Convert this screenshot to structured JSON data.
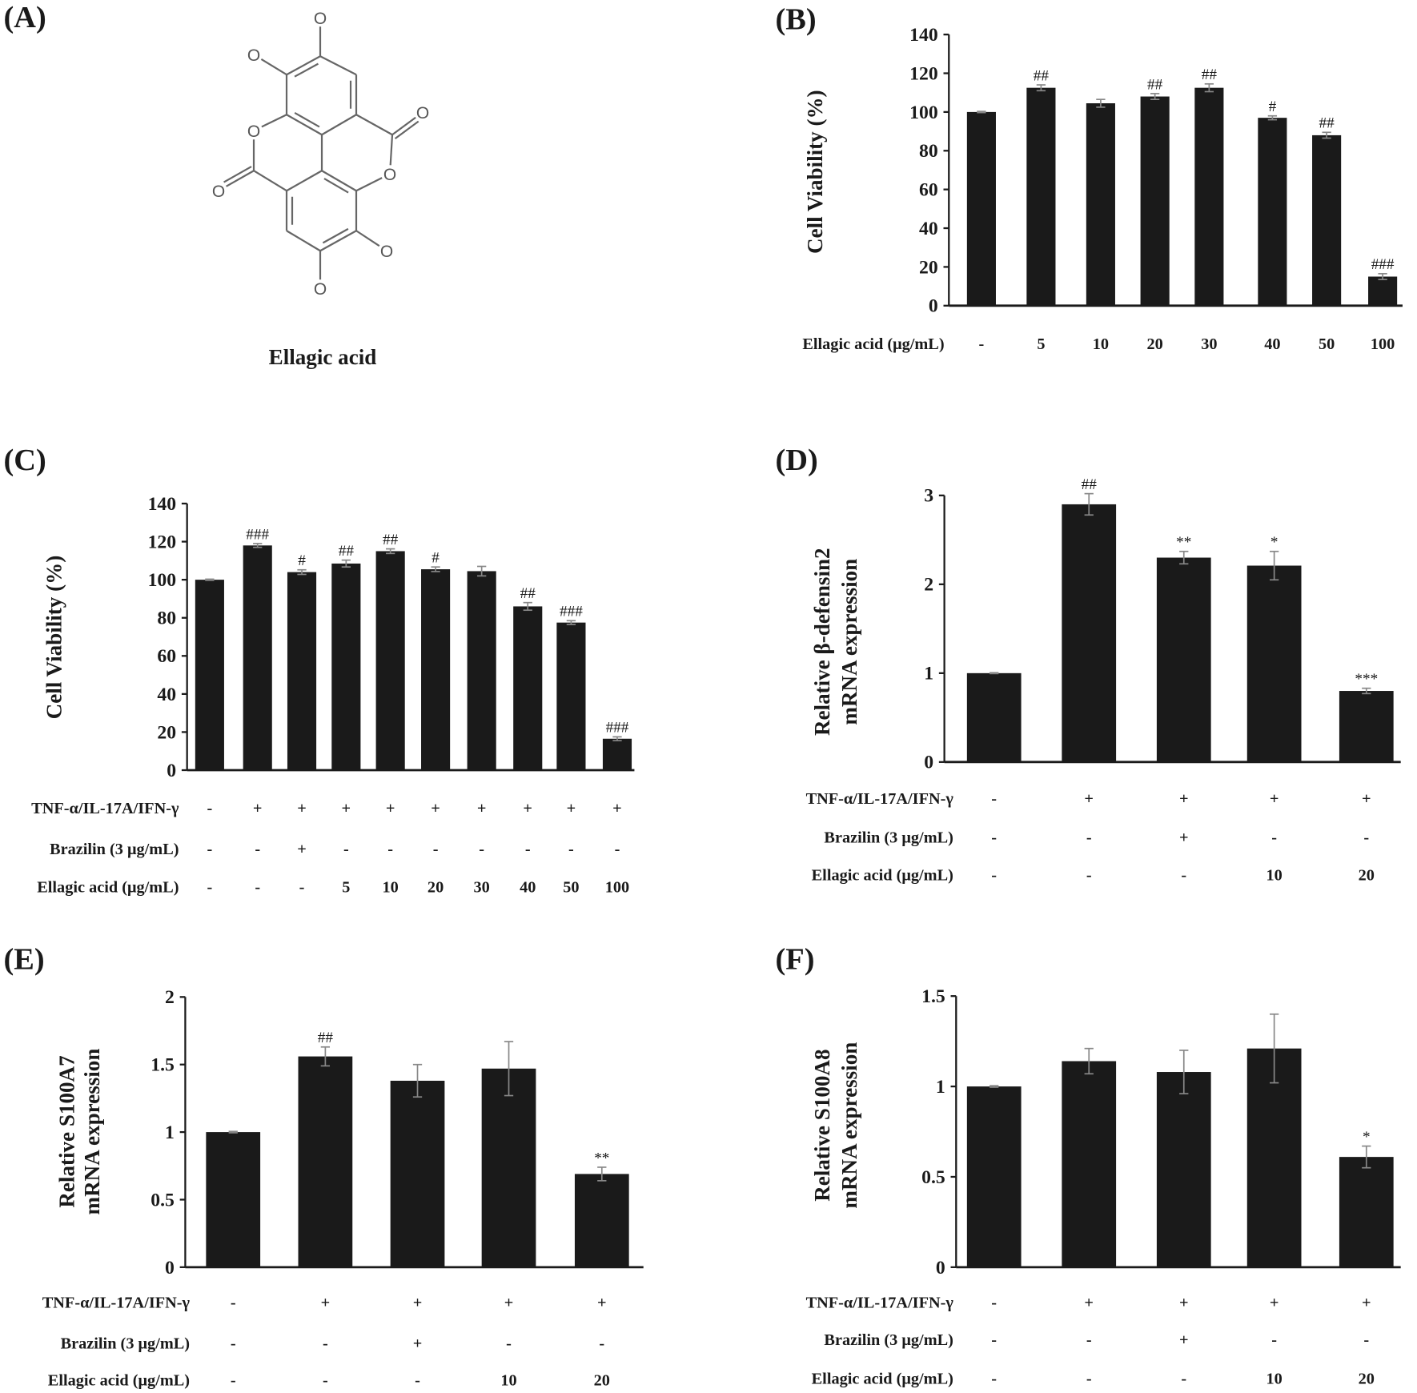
{
  "panel_a": {
    "label": "(A)",
    "compound_name": "Ellagic acid",
    "atom_label": "O"
  },
  "chart_data": [
    {
      "panel": "(B)",
      "type": "bar",
      "ylabel": "Cell Viability (%)",
      "ylim": [
        0,
        140
      ],
      "yticks": [
        "0",
        "20",
        "40",
        "60",
        "80",
        "100",
        "120",
        "140"
      ],
      "rows": [
        {
          "label": "Ellagic acid (μg/mL)",
          "values": [
            "-",
            "5",
            "10",
            "20",
            "30",
            "40",
            "50",
            "100"
          ]
        }
      ],
      "values": [
        100,
        112.5,
        104.5,
        108,
        112.5,
        97,
        88,
        15
      ],
      "errors": [
        0.3,
        1.5,
        2,
        1.5,
        2,
        1,
        1.5,
        1.5
      ],
      "significance": [
        "",
        "##",
        "",
        "##",
        "##",
        "#",
        "##",
        "###"
      ],
      "bar_color": "#1a1a1a"
    },
    {
      "panel": "(C)",
      "type": "bar",
      "ylabel": "Cell Viability (%)",
      "ylim": [
        0,
        140
      ],
      "yticks": [
        "0",
        "20",
        "40",
        "60",
        "80",
        "100",
        "120",
        "140"
      ],
      "rows": [
        {
          "label": "TNF-α/IL-17A/IFN-γ",
          "values": [
            "-",
            "+",
            "+",
            "+",
            "+",
            "+",
            "+",
            "+",
            "+",
            "+"
          ]
        },
        {
          "label": "Brazilin (3 μg/mL)",
          "values": [
            "-",
            "-",
            "+",
            "-",
            "-",
            "-",
            "-",
            "-",
            "-",
            "-"
          ]
        },
        {
          "label": "Ellagic acid (μg/mL)",
          "values": [
            "-",
            "-",
            "-",
            "5",
            "10",
            "20",
            "30",
            "40",
            "50",
            "100"
          ]
        }
      ],
      "values": [
        100,
        118,
        104,
        108.5,
        115,
        105.5,
        104.5,
        86,
        77.5,
        16.5
      ],
      "errors": [
        0.3,
        1,
        1.2,
        1.8,
        1.2,
        1.2,
        2.5,
        2,
        1,
        1
      ],
      "significance": [
        "",
        "###",
        "#",
        "##",
        "##",
        "#",
        "",
        "##",
        "###",
        "###"
      ],
      "bar_color": "#1a1a1a"
    },
    {
      "panel": "(D)",
      "type": "bar",
      "ylabel": [
        "Relative β-defensin2",
        "mRNA expression"
      ],
      "ylim": [
        0,
        3
      ],
      "yticks": [
        "0",
        "1",
        "2",
        "3"
      ],
      "rows": [
        {
          "label": "TNF-α/IL-17A/IFN-γ",
          "values": [
            "-",
            "+",
            "+",
            "+",
            "+"
          ]
        },
        {
          "label": "Brazilin (3 μg/mL)",
          "values": [
            "-",
            "-",
            "+",
            "-",
            "-"
          ]
        },
        {
          "label": "Ellagic acid (μg/mL)",
          "values": [
            "-",
            "-",
            "-",
            "10",
            "20"
          ]
        }
      ],
      "values": [
        1,
        2.9,
        2.3,
        2.21,
        0.8
      ],
      "errors": [
        0.005,
        0.12,
        0.07,
        0.16,
        0.03
      ],
      "significance": [
        "",
        "##",
        "**",
        "*",
        "***"
      ],
      "bar_color": "#1a1a1a"
    },
    {
      "panel": "(E)",
      "type": "bar",
      "ylabel": [
        "Relative S100A7",
        "mRNA expression"
      ],
      "ylim": [
        0,
        2
      ],
      "yticks": [
        "0",
        "0.5",
        "1",
        "1.5",
        "2"
      ],
      "rows": [
        {
          "label": "TNF-α/IL-17A/IFN-γ",
          "values": [
            "-",
            "+",
            "+",
            "+",
            "+"
          ]
        },
        {
          "label": "Brazilin (3 μg/mL)",
          "values": [
            "-",
            "-",
            "+",
            "-",
            "-"
          ]
        },
        {
          "label": "Ellagic acid (μg/mL)",
          "values": [
            "-",
            "-",
            "-",
            "10",
            "20"
          ]
        }
      ],
      "values": [
        1,
        1.56,
        1.38,
        1.47,
        0.69
      ],
      "errors": [
        0.005,
        0.07,
        0.12,
        0.2,
        0.05
      ],
      "significance": [
        "",
        "##",
        "",
        "",
        "**"
      ],
      "bar_color": "#1a1a1a"
    },
    {
      "panel": "(F)",
      "type": "bar",
      "ylabel": [
        "Relative S100A8",
        "mRNA expression"
      ],
      "ylim": [
        0,
        1.5
      ],
      "yticks": [
        "0",
        "0.5",
        "1",
        "1.5"
      ],
      "rows": [
        {
          "label": "TNF-α/IL-17A/IFN-γ",
          "values": [
            "-",
            "+",
            "+",
            "+",
            "+"
          ]
        },
        {
          "label": "Brazilin (3 μg/mL)",
          "values": [
            "-",
            "-",
            "+",
            "-",
            "-"
          ]
        },
        {
          "label": "Ellagic acid (μg/mL)",
          "values": [
            "-",
            "-",
            "-",
            "10",
            "20"
          ]
        }
      ],
      "values": [
        1,
        1.14,
        1.08,
        1.21,
        0.61
      ],
      "errors": [
        0.004,
        0.07,
        0.12,
        0.19,
        0.06
      ],
      "significance": [
        "",
        "",
        "",
        "",
        "*"
      ],
      "bar_color": "#1a1a1a"
    }
  ]
}
